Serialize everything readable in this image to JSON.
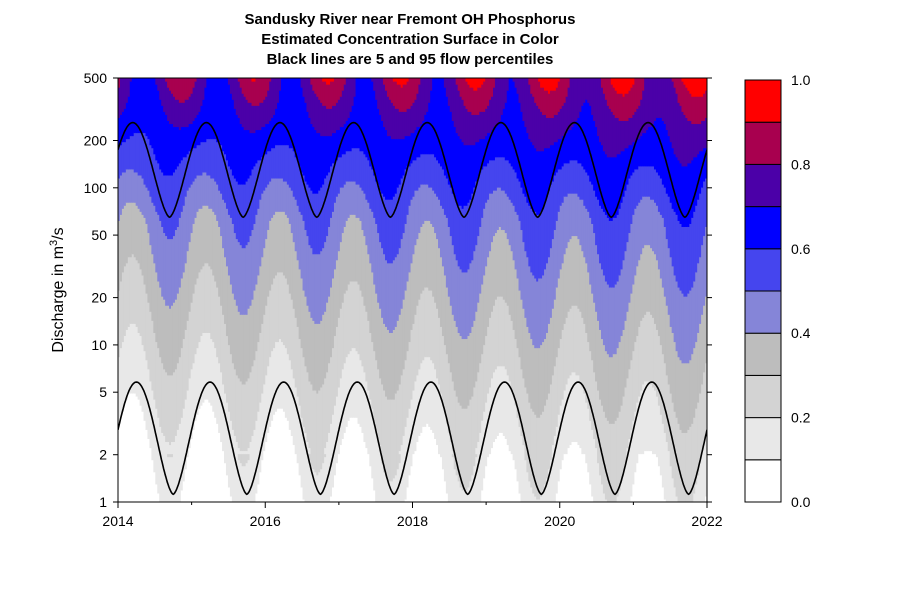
{
  "chart_data": {
    "type": "heatmap",
    "title_lines": [
      "Sandusky River near Fremont OH    Phosphorus",
      "Estimated Concentration Surface in Color",
      "Black lines are 5 and 95 flow percentiles"
    ],
    "ylabel": "Discharge in m³/s",
    "x_range": [
      2014,
      2022
    ],
    "x_ticks": [
      "2014",
      "2016",
      "2018",
      "2020",
      "2022"
    ],
    "y_scale": "log",
    "y_range": [
      1,
      500
    ],
    "y_ticks": [
      "1",
      "2",
      "5",
      "10",
      "20",
      "50",
      "100",
      "200",
      "500"
    ],
    "color_scale": {
      "min": 0.0,
      "max": 1.0,
      "levels": [
        {
          "from": 0.0,
          "to": 0.1,
          "color": "#ffffff"
        },
        {
          "from": 0.1,
          "to": 0.2,
          "color": "#e8e8e8"
        },
        {
          "from": 0.2,
          "to": 0.3,
          "color": "#d3d3d3"
        },
        {
          "from": 0.3,
          "to": 0.4,
          "color": "#bdbdbd"
        },
        {
          "from": 0.4,
          "to": 0.5,
          "color": "#8585d8"
        },
        {
          "from": 0.5,
          "to": 0.6,
          "color": "#4545ee"
        },
        {
          "from": 0.6,
          "to": 0.7,
          "color": "#0000ff"
        },
        {
          "from": 0.7,
          "to": 0.8,
          "color": "#4b00a8"
        },
        {
          "from": 0.8,
          "to": 0.9,
          "color": "#a8004f"
        },
        {
          "from": 0.9,
          "to": 1.0,
          "color": "#ff0000"
        }
      ],
      "tick_labels": [
        "0.0",
        "0.2",
        "0.4",
        "0.6",
        "0.8",
        "1.0"
      ]
    },
    "percentile_lines": {
      "p95": {
        "peak": 260,
        "trough": 65,
        "peak_phase": 0.2,
        "trough_phase": 0.7
      },
      "p5": {
        "peak": 5.8,
        "trough": 1.12,
        "peak_phase": 0.25,
        "trough_phase": 0.7
      }
    },
    "line_color": "#000000"
  }
}
